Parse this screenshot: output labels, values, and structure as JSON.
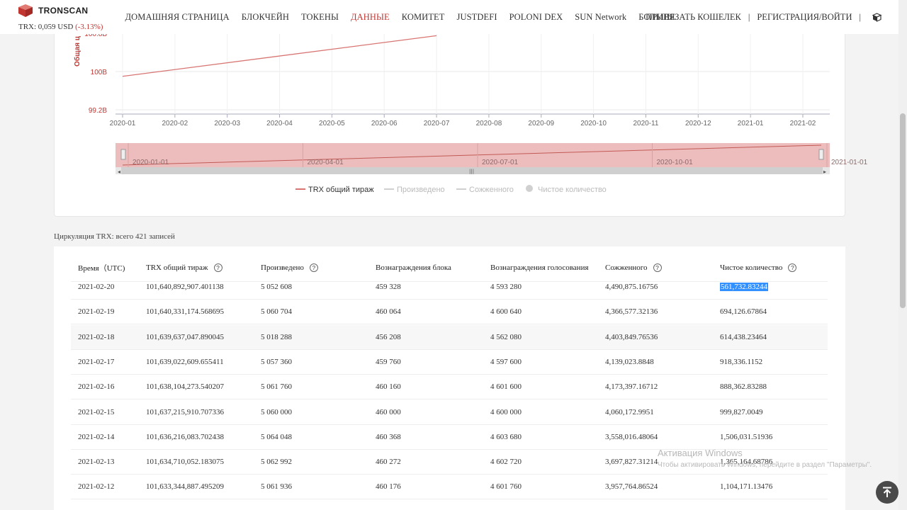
{
  "header": {
    "logo_text": "TRONSCAN",
    "price_label": "TRX: 0,059 USD",
    "price_change": "(-3.13%)",
    "nav": [
      "ДОМАШНЯЯ СТРАНИЦА",
      "БЛОКЧЕЙН",
      "ТОКЕНЫ",
      "ДАННЫЕ",
      "КОМИТЕТ",
      "JUSTDEFI",
      "POLONI DEX",
      "SUN Network",
      "БОЛЬШЕ"
    ],
    "active_nav": "ДАННЫЕ",
    "connect_wallet": "ПРИВЯЗАТЬ КОШЕЛЕК",
    "separator": "|",
    "login": "РЕГИСТРАЦИЯ/ВОЙТИ",
    "right_separator": "|",
    "accent_color": "#c23631"
  },
  "chart_data": {
    "type": "line",
    "ylabel": "Общая ц",
    "y_tick_labels": [
      "100.8B",
      "100B",
      "99.2B"
    ],
    "x_tick_labels": [
      "2020-01",
      "2020-02",
      "2020-03",
      "2020-04",
      "2020-05",
      "2020-06",
      "2020-07",
      "2020-08",
      "2020-09",
      "2020-10",
      "2020-11",
      "2020-12",
      "2021-01",
      "2021-02"
    ],
    "series": [
      {
        "name": "TRX общий тираж",
        "color": "#d87572",
        "x": [
          "2020-01",
          "2020-07"
        ],
        "values": [
          99.9,
          100.75
        ]
      }
    ],
    "zoom_labels": [
      "2020-01-01",
      "2020-04-01",
      "2020-07-01",
      "2020-10-01",
      "2021-01-01"
    ],
    "legend": [
      {
        "name": "TRX общий тираж",
        "active": true
      },
      {
        "name": "Произведено",
        "active": false
      },
      {
        "name": "Сожженного",
        "active": false
      },
      {
        "name": "Чистое количество",
        "active": false
      }
    ],
    "legend_position": "bottom",
    "grid": true
  },
  "records_text": "Циркуляция TRX: всего 421 записей",
  "table": {
    "columns": [
      "Время（UTC)",
      "TRX общий тираж",
      "Произведено",
      "Вознаграждения блока",
      "Вознаграждения голосования",
      "Сожженного",
      "Чистое количество"
    ],
    "help_columns": [
      1,
      2,
      5,
      6
    ],
    "rows": [
      [
        "2021-02-20",
        "101,640,892,907.401138",
        "5 052 608",
        "459 328",
        "4 593 280",
        "4,490,875.16756",
        "561,732.83244"
      ],
      [
        "2021-02-19",
        "101,640,331,174.568695",
        "5 060 704",
        "460 064",
        "4 600 640",
        "4,366,577.32136",
        "694,126.67864"
      ],
      [
        "2021-02-18",
        "101,639,637,047.890045",
        "5 018 288",
        "456 208",
        "4 562 080",
        "4,403,849.76536",
        "614,438.23464"
      ],
      [
        "2021-02-17",
        "101,639,022,609.655411",
        "5 057 360",
        "459 760",
        "4 597 600",
        "4,139,023.8848",
        "918,336.1152"
      ],
      [
        "2021-02-16",
        "101,638,104,273.540207",
        "5 061 760",
        "460 160",
        "4 601 600",
        "4,173,397.16712",
        "888,362.83288"
      ],
      [
        "2021-02-15",
        "101,637,215,910.707336",
        "5 060 000",
        "460 000",
        "4 600 000",
        "4,060,172.9951",
        "999,827.0049"
      ],
      [
        "2021-02-14",
        "101,636,216,083.702438",
        "5 064 048",
        "460 368",
        "4 603 680",
        "3,558,016.48064",
        "1,506,031.51936"
      ],
      [
        "2021-02-13",
        "101,634,710,052.183075",
        "5 062 992",
        "460 272",
        "4 602 720",
        "3,697,827.31214",
        "1,365,164.68786"
      ],
      [
        "2021-02-12",
        "101,633,344,887.495209",
        "5 061 936",
        "460 176",
        "4 601 760",
        "3,957,764.86524",
        "1,104,171.13476"
      ]
    ]
  },
  "watermark": {
    "title": "Активация Windows",
    "subtitle": "Чтобы активировать Windows, перейдите в раздел \"Параметры\"."
  }
}
